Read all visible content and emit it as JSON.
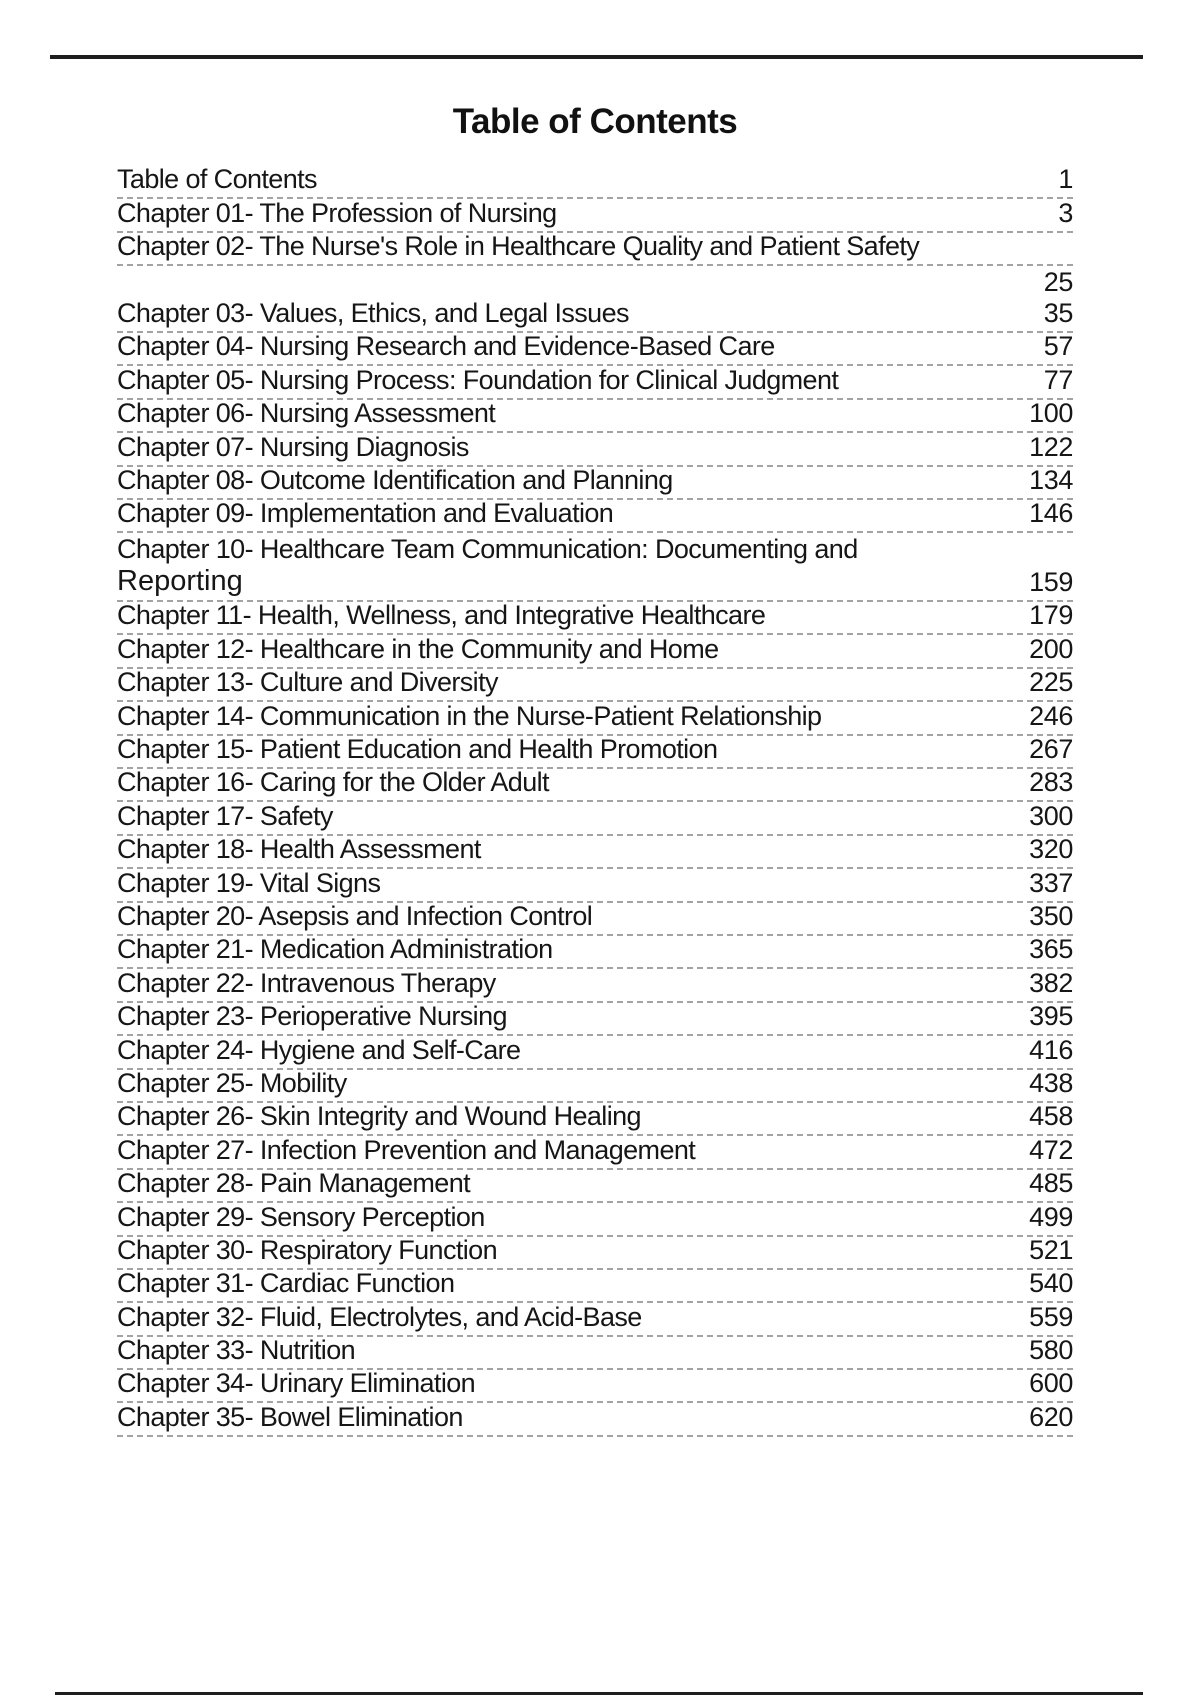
{
  "page": {
    "title": "Table of Contents"
  },
  "toc": {
    "entries": [
      {
        "label": "Table of Contents",
        "page": "1",
        "layout": "normal"
      },
      {
        "label": "Chapter 01- The Profession of Nursing",
        "page": "3",
        "layout": "normal"
      },
      {
        "label": "Chapter 02- The Nurse's Role in Healthcare Quality and Patient Safety",
        "page": "25",
        "layout": "overflow"
      },
      {
        "label": "Chapter 03- Values, Ethics, and Legal Issues",
        "page": "35",
        "layout": "normal"
      },
      {
        "label": "Chapter 04- Nursing Research and Evidence-Based Care",
        "page": "57",
        "layout": "normal"
      },
      {
        "label": "Chapter 05- Nursing Process: Foundation for Clinical Judgment",
        "page": "77",
        "layout": "normal"
      },
      {
        "label": "Chapter 06- Nursing Assessment",
        "page": "100",
        "layout": "normal"
      },
      {
        "label": "Chapter 07- Nursing Diagnosis",
        "page": "122",
        "layout": "normal"
      },
      {
        "label": "Chapter 08- Outcome Identification and Planning",
        "page": "134",
        "layout": "normal"
      },
      {
        "label": "Chapter 09- Implementation and Evaluation",
        "page": "146",
        "layout": "normal"
      },
      {
        "label": "Chapter 10- Healthcare Team Communication: Documenting and",
        "label2": "Reporting",
        "page": "159",
        "layout": "wrap"
      },
      {
        "label": "Chapter 11- Health, Wellness, and Integrative Healthcare",
        "page": "179",
        "layout": "normal"
      },
      {
        "label": "Chapter 12- Healthcare in the Community and Home",
        "page": "200",
        "layout": "normal"
      },
      {
        "label": "Chapter 13- Culture and Diversity",
        "page": "225",
        "layout": "normal"
      },
      {
        "label": "Chapter 14- Communication in the Nurse-Patient Relationship",
        "page": "246",
        "layout": "normal"
      },
      {
        "label": "Chapter 15- Patient Education and Health Promotion",
        "page": "267",
        "layout": "normal"
      },
      {
        "label": "Chapter 16- Caring for the Older Adult",
        "page": "283",
        "layout": "normal"
      },
      {
        "label": "Chapter 17- Safety",
        "page": "300",
        "layout": "normal"
      },
      {
        "label": "Chapter 18- Health Assessment",
        "page": "320",
        "layout": "normal"
      },
      {
        "label": "Chapter 19- Vital Signs",
        "page": "337",
        "layout": "normal"
      },
      {
        "label": "Chapter 20- Asepsis and Infection Control",
        "page": "350",
        "layout": "normal"
      },
      {
        "label": "Chapter 21- Medication Administration",
        "page": "365",
        "layout": "normal"
      },
      {
        "label": "Chapter 22- Intravenous Therapy",
        "page": "382",
        "layout": "normal"
      },
      {
        "label": "Chapter 23- Perioperative Nursing",
        "page": "395",
        "layout": "normal"
      },
      {
        "label": "Chapter 24- Hygiene and Self-Care",
        "page": "416",
        "layout": "normal"
      },
      {
        "label": "Chapter 25- Mobility",
        "page": "438",
        "layout": "normal"
      },
      {
        "label": "Chapter 26- Skin Integrity and Wound Healing",
        "page": "458",
        "layout": "normal"
      },
      {
        "label": "Chapter 27- Infection Prevention and Management",
        "page": "472",
        "layout": "normal"
      },
      {
        "label": "Chapter 28- Pain Management",
        "page": "485",
        "layout": "normal"
      },
      {
        "label": "Chapter 29- Sensory Perception",
        "page": "499",
        "layout": "normal"
      },
      {
        "label": "Chapter 30- Respiratory Function",
        "page": "521",
        "layout": "normal"
      },
      {
        "label": "Chapter 31- Cardiac Function",
        "page": "540",
        "layout": "normal"
      },
      {
        "label": "Chapter 32- Fluid, Electrolytes, and Acid-Base",
        "page": "559",
        "layout": "normal"
      },
      {
        "label": "Chapter 33- Nutrition",
        "page": "580",
        "layout": "normal"
      },
      {
        "label": "Chapter 34- Urinary Elimination",
        "page": "600",
        "layout": "normal"
      },
      {
        "label": "Chapter 35- Bowel Elimination",
        "page": "620",
        "layout": "normal"
      }
    ]
  }
}
